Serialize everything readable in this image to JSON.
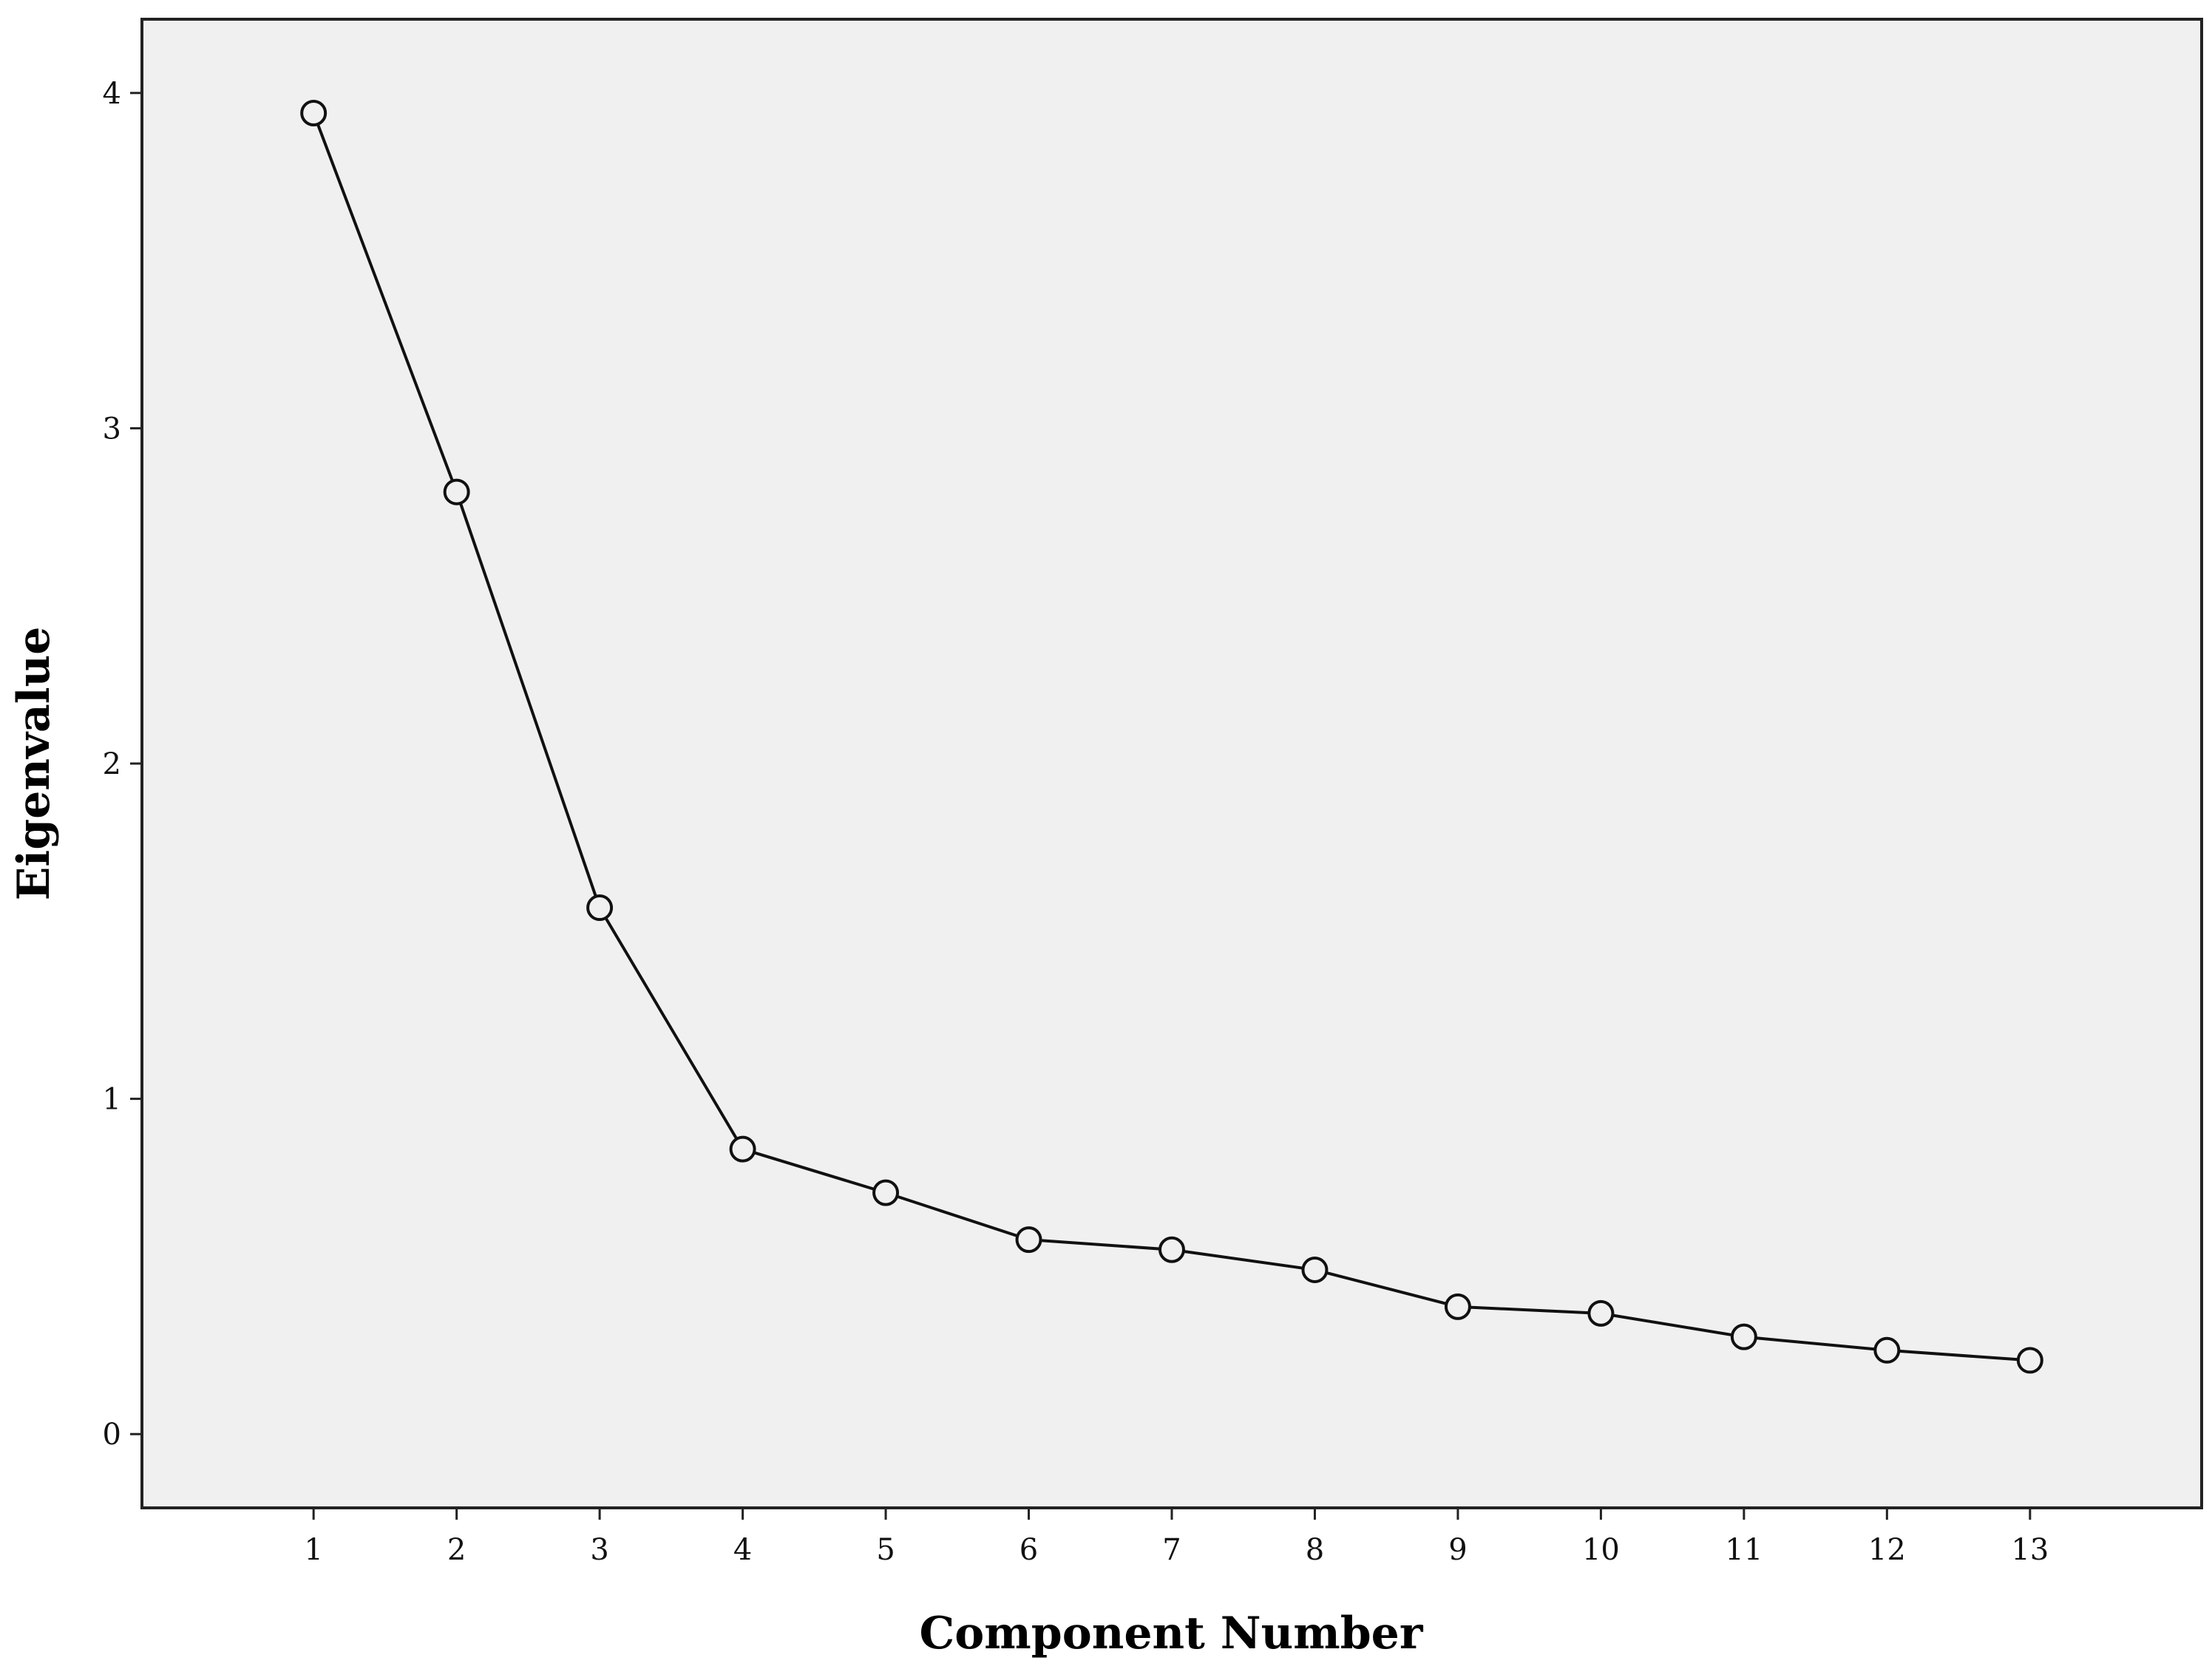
{
  "chart_data": {
    "type": "line",
    "title": "",
    "xlabel": "Component Number",
    "ylabel": "Eigenvalue",
    "x": [
      1,
      2,
      3,
      4,
      5,
      6,
      7,
      8,
      9,
      10,
      11,
      12,
      13
    ],
    "series": [
      {
        "values": [
          3.94,
          2.81,
          1.57,
          0.85,
          0.72,
          0.58,
          0.55,
          0.49,
          0.38,
          0.36,
          0.29,
          0.25,
          0.22
        ]
      }
    ],
    "xticks": [
      "1",
      "2",
      "3",
      "4",
      "5",
      "6",
      "7",
      "8",
      "9",
      "10",
      "11",
      "12",
      "13"
    ],
    "yticks": [
      "0",
      "1",
      "2",
      "3",
      "4"
    ],
    "xlim": [
      -0.2,
      14.2
    ],
    "ylim": [
      -0.22,
      4.22
    ],
    "grid": false,
    "legend": "none",
    "marker": "open-circle",
    "colors": {
      "plot_background": "#f0f0f0",
      "line": "#111111",
      "axis": "#222222"
    }
  }
}
